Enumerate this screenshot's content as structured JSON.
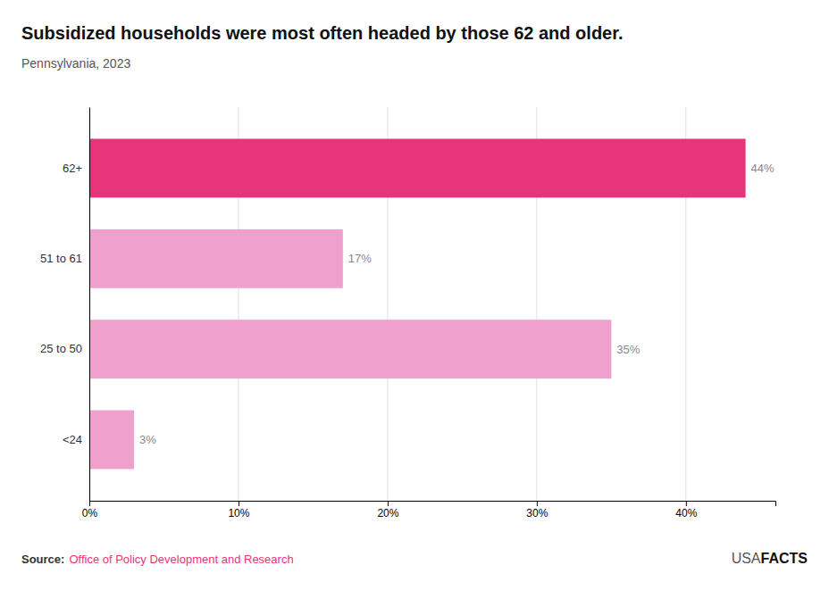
{
  "chart_data": {
    "type": "bar",
    "orientation": "horizontal",
    "title": "Subsidized households were most often headed by those 62 and older.",
    "subtitle": "Pennsylvania, 2023",
    "categories": [
      "62+",
      "51 to 61",
      "25 to 50",
      "<24"
    ],
    "values": [
      44,
      17,
      35,
      3
    ],
    "value_labels": [
      "44%",
      "17%",
      "35%",
      "3%"
    ],
    "data_labels": true,
    "colors": [
      "#e8357a",
      "#f0a0cc",
      "#f0a0cc",
      "#f0a0cc"
    ],
    "xlim": [
      0,
      46
    ],
    "xticks": [
      {
        "value": 0,
        "label": "0%"
      },
      {
        "value": 10,
        "label": "10%"
      },
      {
        "value": 20,
        "label": "20%"
      },
      {
        "value": 30,
        "label": "30%"
      },
      {
        "value": 40,
        "label": "40%"
      }
    ],
    "grid": true,
    "annotations": [
      "Source:",
      "Office of Policy Development and Research",
      "USA",
      "FACTS"
    ]
  }
}
